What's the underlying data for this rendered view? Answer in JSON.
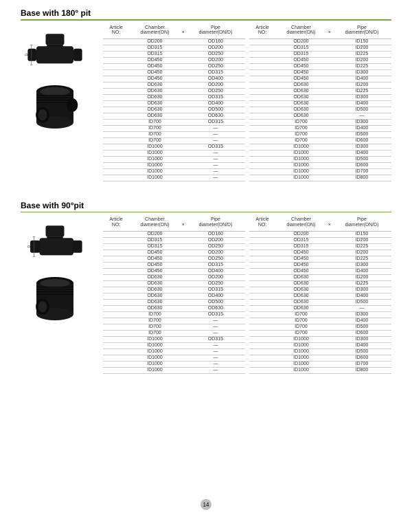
{
  "page_number": "14",
  "accent_color": "#7aa843",
  "sections": [
    {
      "title": "Base with 180° pit",
      "headers": {
        "article": "Article\nNO:",
        "chamber": "Chamber\ndiameter(DN)",
        "pipe": "Pipe\ndiameter(DN/D)",
        "mult": "×"
      },
      "left_rows": [
        [
          "",
          "OD200",
          "OD160"
        ],
        [
          "",
          "OD315",
          "OD200"
        ],
        [
          "",
          "OD315",
          "OD250"
        ],
        [
          "",
          "OD450",
          "OD200"
        ],
        [
          "",
          "OD450",
          "OD250"
        ],
        [
          "",
          "OD450",
          "OD315"
        ],
        [
          "",
          "OD450",
          "OD400"
        ],
        [
          "",
          "OD630",
          "OD200"
        ],
        [
          "",
          "OD630",
          "OD250"
        ],
        [
          "",
          "OD630",
          "OD315"
        ],
        [
          "",
          "OD630",
          "OD400"
        ],
        [
          "",
          "OD630",
          "OD500"
        ],
        [
          "",
          "OD630",
          "OD630"
        ],
        [
          "",
          "ID700",
          "OD315"
        ],
        [
          "",
          "ID700",
          "—"
        ],
        [
          "",
          "ID700",
          "—"
        ],
        [
          "",
          "ID700",
          "—"
        ],
        [
          "",
          "ID1000",
          "OD315"
        ],
        [
          "",
          "ID1000",
          "—"
        ],
        [
          "",
          "ID1000",
          "—"
        ],
        [
          "",
          "ID1000",
          "—"
        ],
        [
          "",
          "ID1000",
          "—"
        ],
        [
          "",
          "ID1000",
          "—"
        ]
      ],
      "right_rows": [
        [
          "",
          "OD200",
          "ID150"
        ],
        [
          "",
          "OD315",
          "ID200"
        ],
        [
          "",
          "OD315",
          "ID225"
        ],
        [
          "",
          "OD450",
          "ID200"
        ],
        [
          "",
          "OD450",
          "ID225"
        ],
        [
          "",
          "OD450",
          "ID300"
        ],
        [
          "",
          "OD450",
          "ID400"
        ],
        [
          "",
          "OD630",
          "ID200"
        ],
        [
          "",
          "OD630",
          "ID225"
        ],
        [
          "",
          "OD630",
          "ID300"
        ],
        [
          "",
          "OD630",
          "ID400"
        ],
        [
          "",
          "OD630",
          "ID500"
        ],
        [
          "",
          "OD630",
          "—"
        ],
        [
          "",
          "ID700",
          "ID300"
        ],
        [
          "",
          "ID700",
          "ID400"
        ],
        [
          "",
          "ID700",
          "ID500"
        ],
        [
          "",
          "ID700",
          "ID600"
        ],
        [
          "",
          "ID1000",
          "ID300"
        ],
        [
          "",
          "ID1000",
          "ID400"
        ],
        [
          "",
          "ID1000",
          "ID500"
        ],
        [
          "",
          "ID1000",
          "ID600"
        ],
        [
          "",
          "ID1000",
          "ID700"
        ],
        [
          "",
          "ID1000",
          "ID800"
        ]
      ]
    },
    {
      "title": "Base with 90°pit",
      "headers": {
        "article": "Article\nNO:",
        "chamber": "Chamber\ndiameter(DN)",
        "pipe": "Pipe\ndiameter(DN/D)",
        "mult": "×"
      },
      "left_rows": [
        [
          "",
          "OD200",
          "OD160"
        ],
        [
          "",
          "OD315",
          "OD200"
        ],
        [
          "",
          "OD315",
          "OD250"
        ],
        [
          "",
          "OD450",
          "OD200"
        ],
        [
          "",
          "OD450",
          "OD250"
        ],
        [
          "",
          "OD450",
          "OD315"
        ],
        [
          "",
          "OD450",
          "OD400"
        ],
        [
          "",
          "OD630",
          "OD200"
        ],
        [
          "",
          "OD630",
          "OD250"
        ],
        [
          "",
          "OD630",
          "OD315"
        ],
        [
          "",
          "OD630",
          "OD400"
        ],
        [
          "",
          "OD630",
          "OD500"
        ],
        [
          "",
          "OD630",
          "OD630"
        ],
        [
          "",
          "ID700",
          "OD315"
        ],
        [
          "",
          "ID700",
          "—"
        ],
        [
          "",
          "ID700",
          "—"
        ],
        [
          "",
          "ID700",
          "—"
        ],
        [
          "",
          "ID1000",
          "OD315"
        ],
        [
          "",
          "ID1000",
          "—"
        ],
        [
          "",
          "ID1000",
          "—"
        ],
        [
          "",
          "ID1000",
          "—"
        ],
        [
          "",
          "ID1000",
          "—"
        ],
        [
          "",
          "ID1000",
          "—"
        ]
      ],
      "right_rows": [
        [
          "",
          "OD200",
          "ID150"
        ],
        [
          "",
          "OD315",
          "ID200"
        ],
        [
          "",
          "OD315",
          "ID225"
        ],
        [
          "",
          "OD450",
          "ID200"
        ],
        [
          "",
          "OD450",
          "ID225"
        ],
        [
          "",
          "OD450",
          "ID300"
        ],
        [
          "",
          "OD450",
          "ID400"
        ],
        [
          "",
          "OD630",
          "ID200"
        ],
        [
          "",
          "OD630",
          "ID225"
        ],
        [
          "",
          "OD630",
          "ID300"
        ],
        [
          "",
          "OD630",
          "ID400"
        ],
        [
          "",
          "OD630",
          "ID500"
        ],
        [
          "",
          "OD630",
          "—"
        ],
        [
          "",
          "ID700",
          "ID300"
        ],
        [
          "",
          "ID700",
          "ID400"
        ],
        [
          "",
          "ID700",
          "ID500"
        ],
        [
          "",
          "ID700",
          "ID600"
        ],
        [
          "",
          "ID1000",
          "ID300"
        ],
        [
          "",
          "ID1000",
          "ID400"
        ],
        [
          "",
          "ID1000",
          "ID500"
        ],
        [
          "",
          "ID1000",
          "ID600"
        ],
        [
          "",
          "ID1000",
          "ID700"
        ],
        [
          "",
          "ID1000",
          "ID800"
        ]
      ]
    }
  ]
}
